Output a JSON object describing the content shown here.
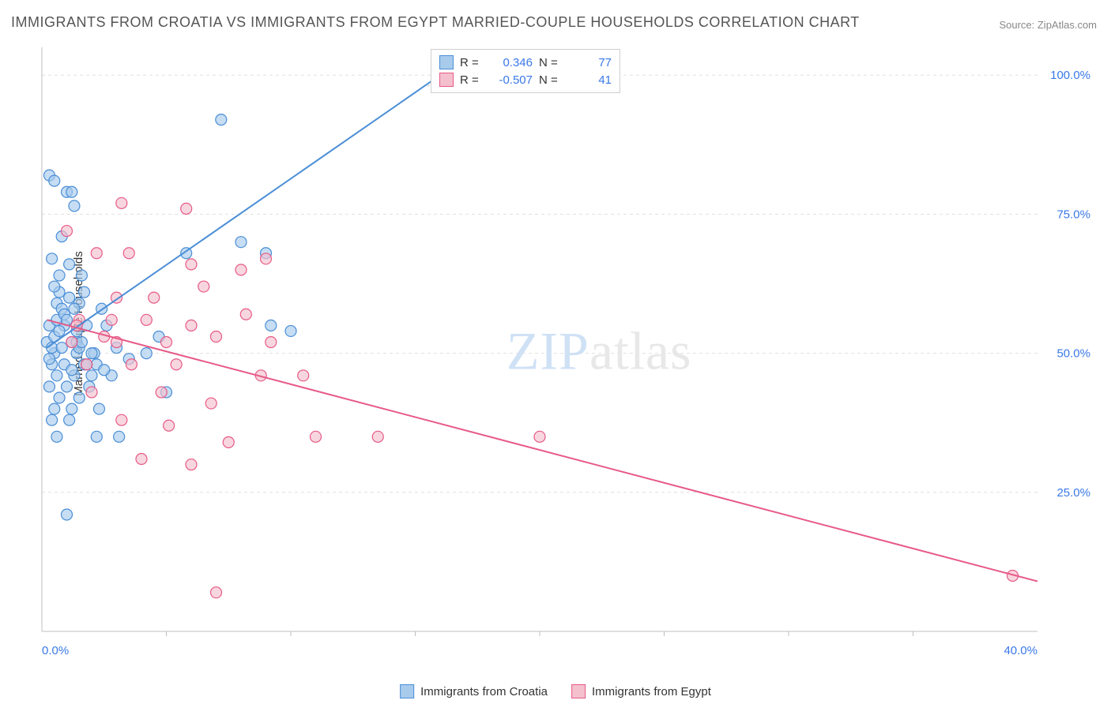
{
  "title": "IMMIGRANTS FROM CROATIA VS IMMIGRANTS FROM EGYPT MARRIED-COUPLE HOUSEHOLDS CORRELATION CHART",
  "source": "Source: ZipAtlas.com",
  "watermark": {
    "zip": "ZIP",
    "atlas": "atlas"
  },
  "chart": {
    "type": "scatter-with-regression",
    "ylabel": "Married-couple Households",
    "xlim": [
      0,
      40
    ],
    "ylim": [
      0,
      105
    ],
    "xticks": [
      0,
      40
    ],
    "xtick_labels": [
      "0.0%",
      "40.0%"
    ],
    "yticks": [
      25,
      50,
      75,
      100
    ],
    "ytick_labels": [
      "25.0%",
      "50.0%",
      "75.0%",
      "100.0%"
    ],
    "xtick_minor": [
      5,
      10,
      15,
      20,
      25,
      30,
      35
    ],
    "grid_color": "#e0e0e0",
    "axis_color": "#bfbfbf",
    "background_color": "#ffffff",
    "marker_radius": 7,
    "marker_stroke_width": 1.2,
    "line_width": 2,
    "series": [
      {
        "name": "Immigrants from Croatia",
        "color_fill": "#a8cbec",
        "color_stroke": "#4a8ed6",
        "r": 0.346,
        "n": 77,
        "regression": {
          "x1": 0.2,
          "y1": 51,
          "x2": 16,
          "y2": 100
        },
        "points": [
          [
            0.3,
            82
          ],
          [
            0.5,
            81
          ],
          [
            1.0,
            79
          ],
          [
            1.2,
            79
          ],
          [
            1.3,
            76.5
          ],
          [
            0.8,
            71
          ],
          [
            0.4,
            67
          ],
          [
            1.1,
            66
          ],
          [
            0.7,
            64
          ],
          [
            1.6,
            64
          ],
          [
            0.6,
            59
          ],
          [
            1.5,
            59
          ],
          [
            0.3,
            55
          ],
          [
            0.9,
            55
          ],
          [
            1.8,
            55
          ],
          [
            2.6,
            55
          ],
          [
            1.2,
            52
          ],
          [
            0.5,
            50
          ],
          [
            1.4,
            50
          ],
          [
            2.1,
            50
          ],
          [
            0.4,
            48
          ],
          [
            0.9,
            48
          ],
          [
            1.7,
            48
          ],
          [
            0.6,
            46
          ],
          [
            1.3,
            46
          ],
          [
            2.0,
            46
          ],
          [
            0.3,
            44
          ],
          [
            1.0,
            44
          ],
          [
            1.9,
            44
          ],
          [
            0.7,
            42
          ],
          [
            1.5,
            42
          ],
          [
            0.5,
            40
          ],
          [
            1.2,
            40
          ],
          [
            2.3,
            40
          ],
          [
            0.4,
            38
          ],
          [
            1.1,
            38
          ],
          [
            0.6,
            35
          ],
          [
            2.2,
            35
          ],
          [
            3.1,
            35
          ],
          [
            1.4,
            52
          ],
          [
            0.8,
            58
          ],
          [
            1.7,
            61
          ],
          [
            2.4,
            58
          ],
          [
            3.0,
            51
          ],
          [
            2.8,
            46
          ],
          [
            3.5,
            49
          ],
          [
            4.2,
            50
          ],
          [
            4.7,
            53
          ],
          [
            5.0,
            43
          ],
          [
            5.8,
            68
          ],
          [
            7.2,
            92
          ],
          [
            8.0,
            70
          ],
          [
            9.0,
            68
          ],
          [
            9.2,
            55
          ],
          [
            10.0,
            54
          ],
          [
            0.2,
            52
          ],
          [
            0.3,
            49
          ],
          [
            0.4,
            51
          ],
          [
            0.5,
            53
          ],
          [
            0.6,
            56
          ],
          [
            0.7,
            54
          ],
          [
            0.8,
            51
          ],
          [
            0.9,
            57
          ],
          [
            1.0,
            56
          ],
          [
            1.1,
            60
          ],
          [
            1.2,
            47
          ],
          [
            1.3,
            58
          ],
          [
            1.4,
            54
          ],
          [
            1.5,
            51
          ],
          [
            1.6,
            52
          ],
          [
            1.8,
            48
          ],
          [
            2.0,
            50
          ],
          [
            2.2,
            48
          ],
          [
            2.5,
            47
          ],
          [
            0.7,
            61
          ],
          [
            0.5,
            62
          ],
          [
            1.0,
            21
          ]
        ]
      },
      {
        "name": "Immigrants from Egypt",
        "color_fill": "#f5c0ce",
        "color_stroke": "#e75a87",
        "r": -0.507,
        "n": 41,
        "regression": {
          "x1": 0.2,
          "y1": 56,
          "x2": 40,
          "y2": 9
        },
        "points": [
          [
            1.0,
            72
          ],
          [
            3.2,
            77
          ],
          [
            5.8,
            76
          ],
          [
            2.2,
            68
          ],
          [
            3.5,
            68
          ],
          [
            6.0,
            66
          ],
          [
            8.0,
            65
          ],
          [
            9.0,
            67
          ],
          [
            3.0,
            60
          ],
          [
            4.5,
            60
          ],
          [
            6.5,
            62
          ],
          [
            1.5,
            56
          ],
          [
            2.8,
            56
          ],
          [
            4.2,
            56
          ],
          [
            6.0,
            55
          ],
          [
            8.2,
            57
          ],
          [
            1.2,
            52
          ],
          [
            3.0,
            52
          ],
          [
            5.0,
            52
          ],
          [
            7.0,
            53
          ],
          [
            9.2,
            52
          ],
          [
            1.8,
            48
          ],
          [
            3.6,
            48
          ],
          [
            5.4,
            48
          ],
          [
            2.0,
            43
          ],
          [
            4.8,
            43
          ],
          [
            6.8,
            41
          ],
          [
            3.2,
            38
          ],
          [
            5.1,
            37
          ],
          [
            7.5,
            34
          ],
          [
            4.0,
            31
          ],
          [
            6.0,
            30
          ],
          [
            8.8,
            46
          ],
          [
            10.5,
            46
          ],
          [
            11.0,
            35
          ],
          [
            13.5,
            35
          ],
          [
            20.0,
            35
          ],
          [
            7.0,
            7
          ],
          [
            39.0,
            10
          ],
          [
            1.4,
            55
          ],
          [
            2.5,
            53
          ]
        ]
      }
    ]
  },
  "stats_box": {
    "rows": [
      {
        "swatch_fill": "#a8cbec",
        "swatch_stroke": "#4a8ed6",
        "r_label": "R =",
        "r_val": "0.346",
        "n_label": "N =",
        "n_val": "77"
      },
      {
        "swatch_fill": "#f5c0ce",
        "swatch_stroke": "#e75a87",
        "r_label": "R =",
        "r_val": "-0.507",
        "n_label": "N =",
        "n_val": "41"
      }
    ]
  },
  "legend": [
    {
      "swatch_fill": "#a8cbec",
      "swatch_stroke": "#4a8ed6",
      "label": "Immigrants from Croatia"
    },
    {
      "swatch_fill": "#f5c0ce",
      "swatch_stroke": "#e75a87",
      "label": "Immigrants from Egypt"
    }
  ]
}
